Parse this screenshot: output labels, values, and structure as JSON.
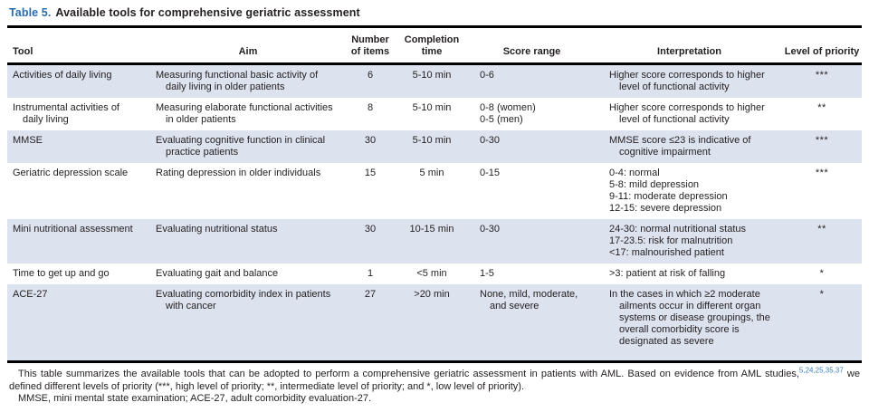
{
  "title": {
    "label": "Table 5.",
    "text": "Available tools for comprehensive geriatric assessment"
  },
  "table": {
    "columns": [
      "Tool",
      "Aim",
      "Number of items",
      "Completion time",
      "Score range",
      "Interpretation",
      "Level of priority"
    ],
    "rows": [
      {
        "tool": "Activities of daily living",
        "aim": "Measuring functional basic activity of daily living in older patients",
        "items": "6",
        "time": "5-10 min",
        "score": "0-6",
        "interpretation": "Higher score corresponds to higher level of functional activity",
        "priority": "***"
      },
      {
        "tool": "Instrumental activities of daily living",
        "aim": "Measuring elaborate functional activities in older patients",
        "items": "8",
        "time": "5-10 min",
        "score": "0-8 (women)\n0-5 (men)",
        "interpretation": "Higher score corresponds to higher level of functional activity",
        "priority": "**"
      },
      {
        "tool": "MMSE",
        "aim": "Evaluating cognitive function in clinical practice patients",
        "items": "30",
        "time": "5-10 min",
        "score": "0-30",
        "interpretation": "MMSE score ≤23 is indicative of cognitive impairment",
        "priority": "***"
      },
      {
        "tool": "Geriatric depression scale",
        "aim": "Rating depression in older individuals",
        "items": "15",
        "time": "5 min",
        "score": "0-15",
        "interpretation": "0-4: normal\n5-8: mild depression\n9-11: moderate depression\n12-15: severe depression",
        "priority": "***"
      },
      {
        "tool": "Mini nutritional assessment",
        "aim": "Evaluating nutritional status",
        "items": "30",
        "time": "10-15 min",
        "score": "0-30",
        "interpretation": "24-30: normal nutritional status\n17-23.5: risk for malnutrition\n<17: malnourished patient",
        "priority": "**"
      },
      {
        "tool": "Time to get up and go",
        "aim": "Evaluating gait and balance",
        "items": "1",
        "time": "<5 min",
        "score": "1-5",
        "interpretation": ">3: patient at risk of falling",
        "priority": "*"
      },
      {
        "tool": "ACE-27",
        "aim": "Evaluating comorbidity index in patients with cancer",
        "items": "27",
        "time": ">20 min",
        "score": "None, mild, moderate, and severe",
        "interpretation": "In the cases in which ≥2 moderate ailments occur in different organ systems or disease groupings, the overall comorbidity score is designated as severe",
        "priority": "*"
      }
    ]
  },
  "footnotes": {
    "summary_before_citation": "This table summarizes the available tools that can be adopted to perform a comprehensive geriatric assessment in patients with AML. Based on evidence from AML studies,",
    "citation": "5,24,25,35,37",
    "summary_after_citation": " we defined different levels of priority (***, high level of priority; **, intermediate level of priority; and *, low level of priority).",
    "abbreviations": "MMSE, mini mental state examination; ACE-27, adult comorbidity evaluation-27."
  },
  "colors": {
    "title_label_blue": "#2a6bae",
    "citation_blue": "#3d7fbe",
    "row_shade": "#dce2ee",
    "text": "#231f20",
    "rule": "#000000"
  }
}
